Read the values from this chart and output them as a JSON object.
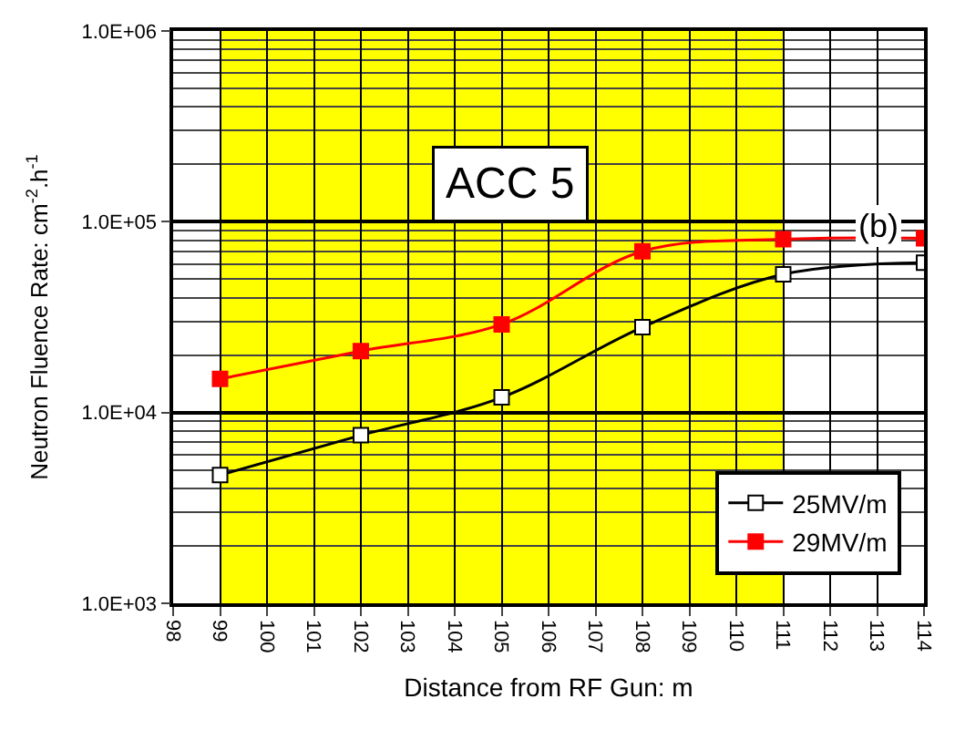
{
  "chart_data": {
    "type": "line",
    "xlabel": "Distance from RF Gun: m",
    "ylabel": "Neutron Fluence Rate: cm$^{-2}$.h$^{-1}$",
    "log": "y",
    "xlim": [
      98,
      114
    ],
    "xticks": [
      98,
      99,
      100,
      101,
      102,
      103,
      104,
      105,
      106,
      107,
      108,
      109,
      110,
      111,
      112,
      113,
      114
    ],
    "ylim": [
      1000,
      1000000
    ],
    "yticks": [
      {
        "value": 1000,
        "label": "1.0E+03"
      },
      {
        "value": 10000,
        "label": "1.0E+04"
      },
      {
        "value": 100000,
        "label": "1.0E+05"
      },
      {
        "value": 1000000,
        "label": "1.0E+06"
      }
    ],
    "grid": true,
    "legend": "bottom right",
    "marker": "square",
    "line_style": "solid",
    "x": [
      99,
      102,
      105,
      108,
      111,
      114
    ],
    "series": [
      {
        "name": "25MV/m",
        "color": "#000000",
        "values": [
          4700,
          7600,
          12000,
          28000,
          53000,
          61000
        ]
      },
      {
        "name": "29MV/m",
        "color": "#ff0000",
        "values": [
          15000,
          21000,
          29000,
          70000,
          81000,
          82000
        ]
      }
    ],
    "bands": [
      {
        "axis": "x",
        "from": 99,
        "to": 111,
        "color": "#ffff00"
      }
    ],
    "annotations": [
      "ACC 5",
      "(b)"
    ]
  }
}
